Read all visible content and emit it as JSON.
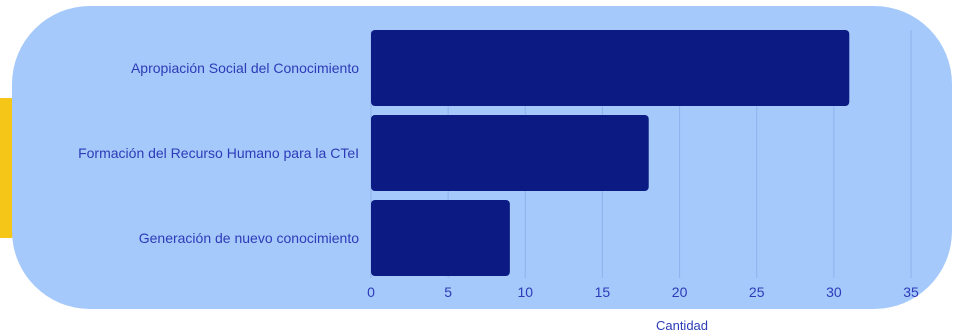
{
  "chart_data": {
    "type": "bar",
    "orientation": "horizontal",
    "categories": [
      "Apropiación Social del Conocimiento",
      "Formación del Recurso Humano para la CTeI",
      "Generación de nuevo conocimiento"
    ],
    "values": [
      31,
      18,
      9
    ],
    "xlabel": "Cantidad",
    "ylabel": "",
    "xlim": [
      0,
      35
    ],
    "xticks": [
      "0",
      "5",
      "10",
      "15",
      "20",
      "25",
      "30",
      "35"
    ],
    "grid": "vertical",
    "legend": "none"
  },
  "colors": {
    "bar": "#0c1a83",
    "card_background": "#a5c9fb",
    "text": "#2d3bb8",
    "gridline": "#8fb2ec",
    "accent_tab": "#f5c518"
  }
}
